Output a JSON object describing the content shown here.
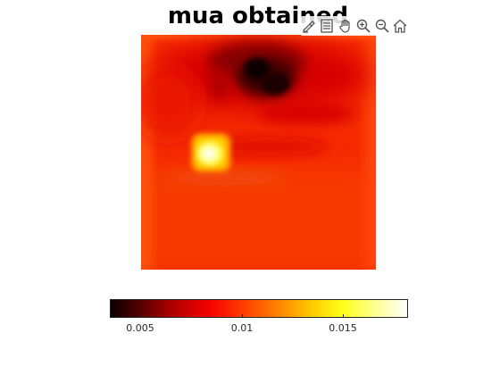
{
  "chart_data": {
    "type": "heatmap",
    "title": "mua obtained",
    "colormap": "hot",
    "colorbar": {
      "orientation": "horizontal",
      "range": [
        0.0035,
        0.0182
      ],
      "ticks": [
        0.005,
        0.01,
        0.015
      ],
      "tick_labels": [
        "0.005",
        "0.01",
        "0.015"
      ]
    },
    "grid": false
  },
  "toolbar": {
    "buttons": [
      {
        "id": "brush",
        "icon": "brush-icon"
      },
      {
        "id": "datatip",
        "icon": "datatip-icon"
      },
      {
        "id": "pan",
        "icon": "pan-hand-icon"
      },
      {
        "id": "zoom-in",
        "icon": "zoom-in-icon"
      },
      {
        "id": "zoom-out",
        "icon": "zoom-out-icon"
      },
      {
        "id": "home",
        "icon": "home-icon"
      }
    ]
  }
}
